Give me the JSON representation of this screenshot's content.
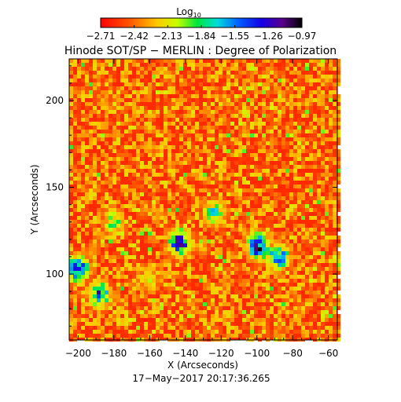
{
  "chart_data": {
    "type": "heatmap",
    "title": "Hinode SOT/SP − MERLIN : Degree of Polarization",
    "xlabel": "X (Arcseconds)",
    "ylabel": "Y (Arcseconds)",
    "xlim": [
      -205,
      -55
    ],
    "ylim": [
      62,
      224
    ],
    "x_ticks": [
      -200,
      -180,
      -160,
      -140,
      -120,
      -100,
      -80,
      -60
    ],
    "x_tick_labels": [
      "−200",
      "−180",
      "−160",
      "−140",
      "−120",
      "−100",
      "−80",
      "−60"
    ],
    "y_ticks": [
      100,
      150,
      200
    ],
    "y_tick_labels": [
      "100",
      "150",
      "200"
    ],
    "timestamp": "17−May−2017 20:17:36.265",
    "colorbar": {
      "title": "Log",
      "title_subscript": "10",
      "range": [
        -2.71,
        -0.97
      ],
      "tick_labels": [
        "−2.71",
        "−2.42",
        "−2.13",
        "−1.84",
        "−1.55",
        "−1.26",
        "−0.97"
      ],
      "colormap": "rainbow"
    },
    "high_polarization_regions": [
      {
        "x": -200,
        "y": 103,
        "level": -1.1
      },
      {
        "x": -188,
        "y": 88,
        "level": -1.3
      },
      {
        "x": -143,
        "y": 118,
        "level": -1.1
      },
      {
        "x": -99,
        "y": 116,
        "level": -1.0
      },
      {
        "x": -88,
        "y": 110,
        "level": -1.3
      },
      {
        "x": -124,
        "y": 135,
        "level": -1.6
      },
      {
        "x": -180,
        "y": 130,
        "level": -1.8
      },
      {
        "x": -160,
        "y": 97,
        "level": -1.9
      }
    ]
  }
}
